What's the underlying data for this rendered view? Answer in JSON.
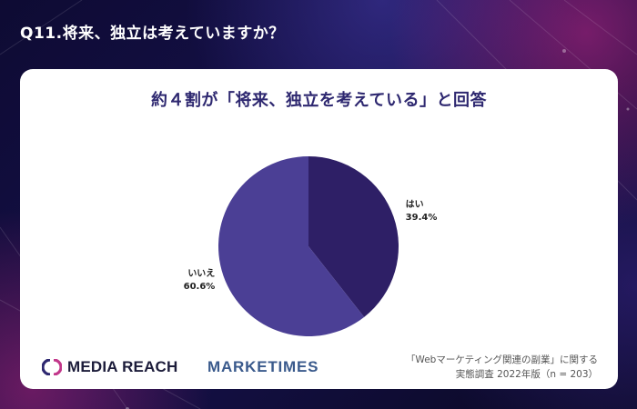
{
  "question": "Q11.将来、独立は考えていますか？",
  "headline": "約４割が「将来、独立を考えている」と回答",
  "chart_data": {
    "type": "pie",
    "slices": [
      {
        "label": "はい",
        "value": 39.4,
        "display": "39.4%",
        "color": "#2e1f66"
      },
      {
        "label": "いいえ",
        "value": 60.6,
        "display": "60.6%",
        "color": "#4b3f95"
      }
    ],
    "start_angle": "top",
    "direction": "clockwise"
  },
  "logos": {
    "media_reach": "MEDIA REACH",
    "marketimes": "MARKETIMES"
  },
  "source": {
    "line1": "「Webマーケティング関連の副業」に関する",
    "line2": "実態調査 2022年版（n = 203）"
  },
  "colors": {
    "headline": "#2e2870",
    "background": "#0b0a2a"
  }
}
